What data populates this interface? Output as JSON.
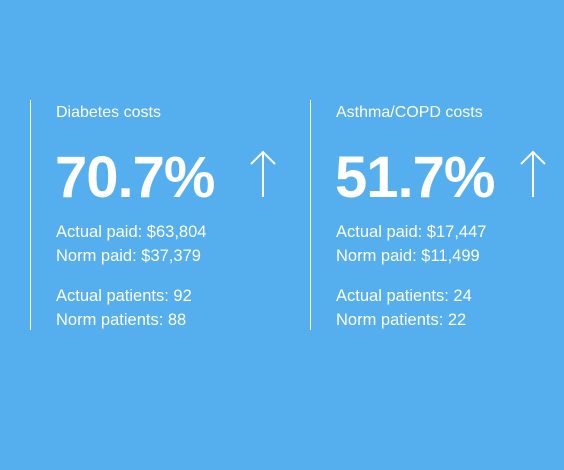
{
  "cards": [
    {
      "title": "Diabetes costs",
      "metric": "70.7%",
      "trend_icon": "arrow-up-icon",
      "actual_paid": "Actual paid: $63,804",
      "norm_paid": "Norm paid: $37,379",
      "actual_patients": "Actual patients: 92",
      "norm_patients": "Norm patients: 88"
    },
    {
      "title": "Asthma/COPD costs",
      "metric": "51.7%",
      "trend_icon": "arrow-up-icon",
      "actual_paid": "Actual paid: $17,447",
      "norm_paid": "Norm paid: $11,499",
      "actual_patients": "Actual patients: 24",
      "norm_patients": "Norm patients: 22"
    }
  ],
  "colors": {
    "background": "#55aeee",
    "text": "#ffffff"
  }
}
